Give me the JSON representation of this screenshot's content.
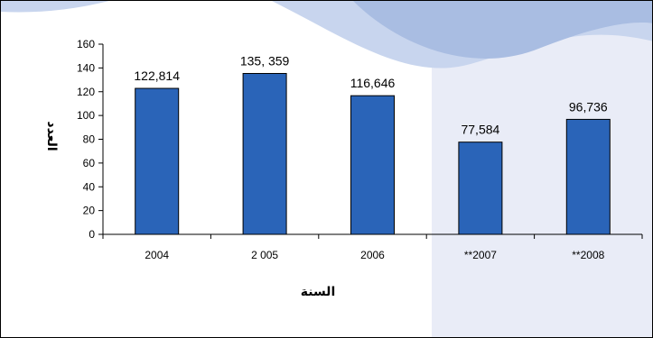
{
  "chart_data": {
    "type": "bar",
    "categories": [
      "2004",
      "2 005",
      "2006",
      "**2007",
      "**2008"
    ],
    "values": [
      122.814,
      135.359,
      116.646,
      77.584,
      96.736
    ],
    "data_labels": [
      "122,814",
      "135, 359",
      "116,646",
      "77,584",
      "96,736"
    ],
    "y_ticks": [
      "0",
      "20",
      "40",
      "60",
      "80",
      "100",
      "120",
      "140",
      "160"
    ],
    "ylim": [
      0,
      160
    ],
    "xlabel": "السنة",
    "ylabel": "العدد",
    "grid": false,
    "legend": "none",
    "colors": {
      "bar": "#2a64b8",
      "bar_edge": "#000000",
      "panel_shade": "#e9ecf7",
      "wave_light": "#c8d5ee",
      "wave_dark": "#a9bde2"
    }
  }
}
